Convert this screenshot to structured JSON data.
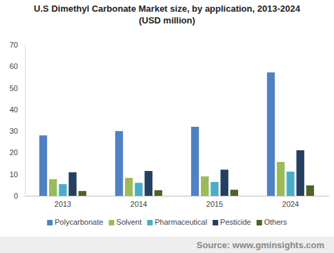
{
  "chart_data": {
    "type": "bar",
    "title": "U.S Dimethyl Carbonate Market size, by application, 2013-2024",
    "subtitle": "(USD million)",
    "source": "Source: www.gminsights.com",
    "categories": [
      "2013",
      "2014",
      "2015",
      "2024"
    ],
    "series": [
      {
        "name": "Polycarbonate",
        "color": "#4f81c4",
        "values": [
          28,
          30,
          32,
          57.2
        ]
      },
      {
        "name": "Solvent",
        "color": "#9bbb59",
        "values": [
          7.7,
          8.3,
          9,
          15.7
        ]
      },
      {
        "name": "Pharmaceutical",
        "color": "#4bacc6",
        "values": [
          5.4,
          6,
          6.4,
          11.2
        ]
      },
      {
        "name": "Pesticide",
        "color": "#243f60",
        "values": [
          10.9,
          11.5,
          12.1,
          21.1
        ]
      },
      {
        "name": "Others",
        "color": "#4f6228",
        "values": [
          2.2,
          2.6,
          2.8,
          4.8
        ]
      }
    ],
    "ylim": [
      0,
      70
    ],
    "yticks": [
      0,
      10,
      20,
      30,
      40,
      50,
      60,
      70
    ],
    "grid": false,
    "legend": "bottom"
  }
}
